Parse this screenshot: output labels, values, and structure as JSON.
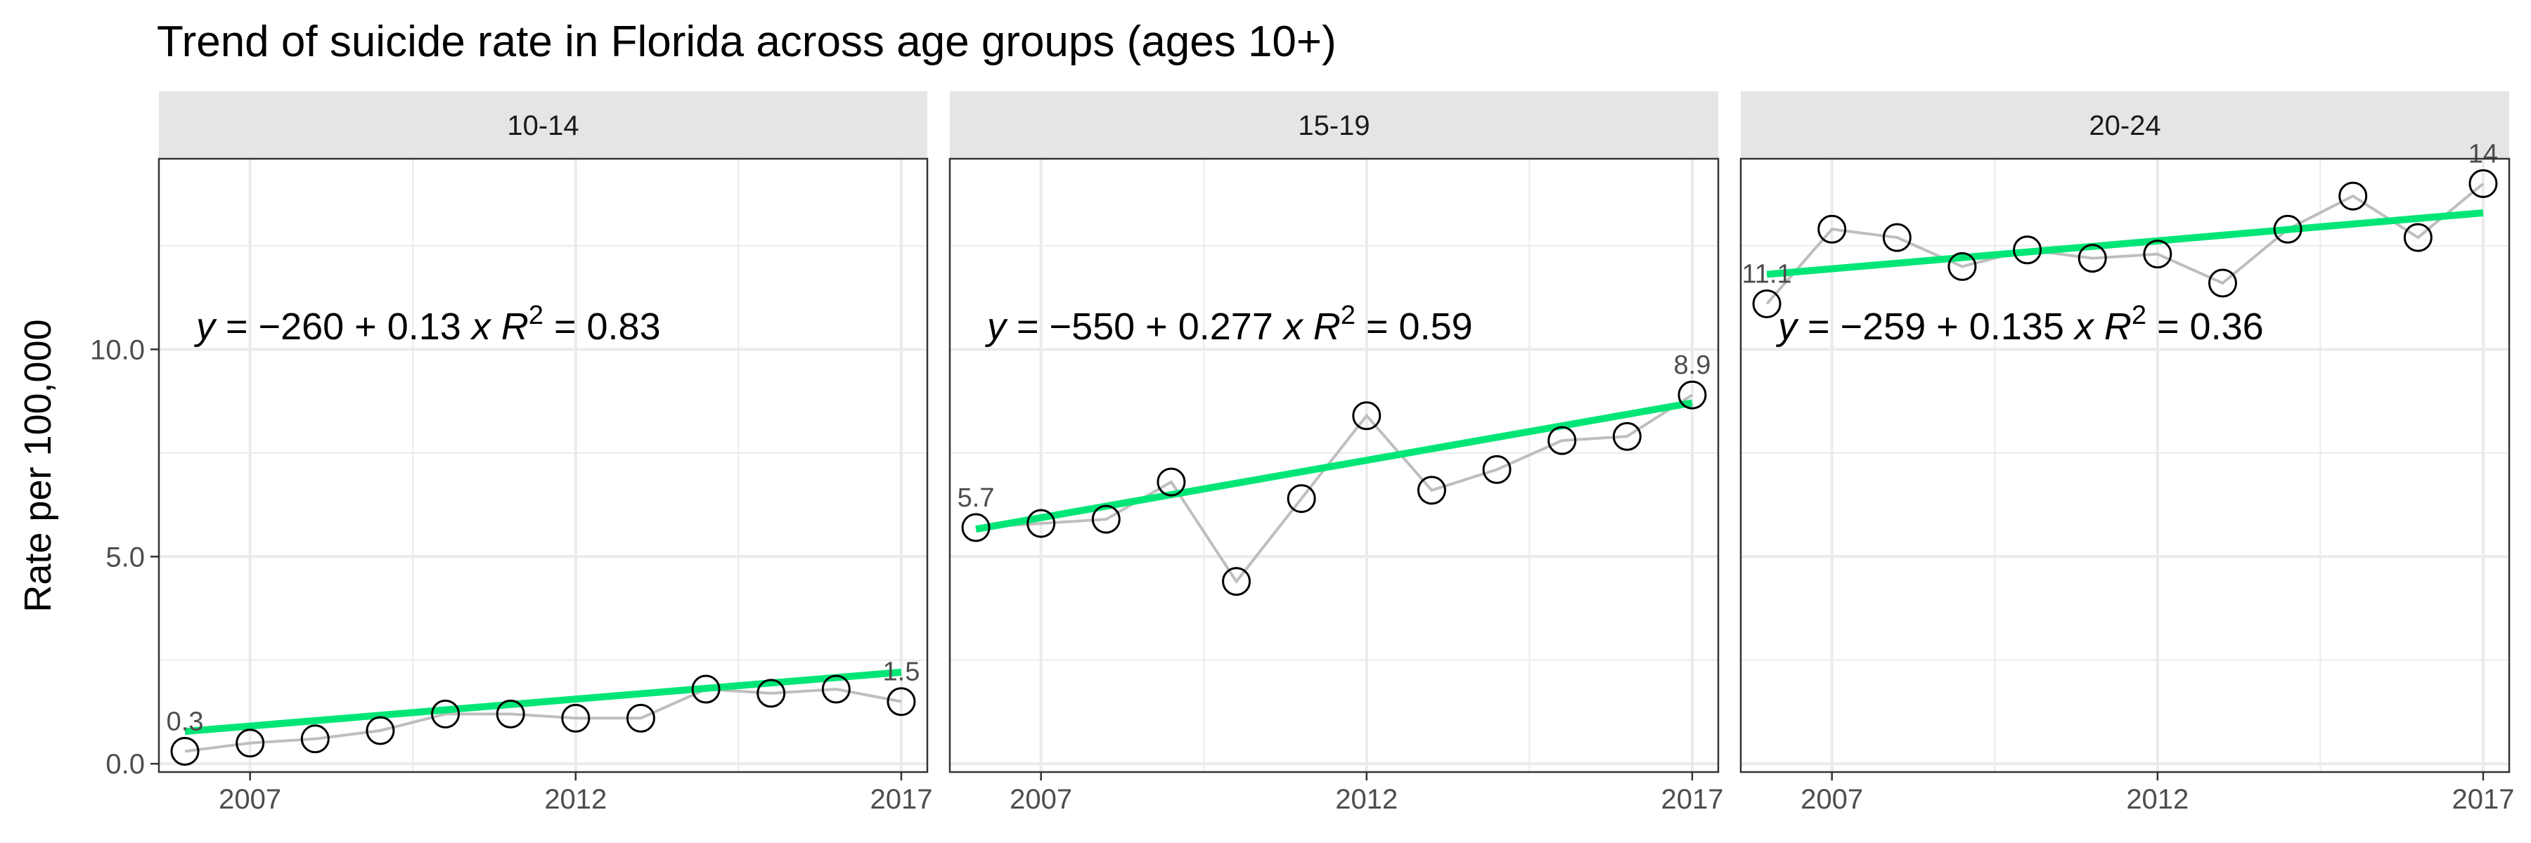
{
  "chart_data": {
    "type": "line",
    "title": "Trend of suicide rate in Florida across age groups (ages 10+)",
    "xlabel": "",
    "ylabel": "Rate per 100,000",
    "xlim": [
      2005.6,
      2017.4
    ],
    "ylim": [
      -0.2,
      14.6
    ],
    "x_ticks": [
      2007,
      2012,
      2017
    ],
    "y_ticks": [
      0,
      5,
      10
    ],
    "y_tick_labels": [
      "0.0",
      "5.0",
      "10.0"
    ],
    "grid": true,
    "x": [
      2006,
      2007,
      2008,
      2009,
      2010,
      2011,
      2012,
      2013,
      2014,
      2015,
      2016,
      2017
    ],
    "colors": {
      "line": "#bebebe",
      "fit": "#00e676",
      "strip": "#e5e5e5",
      "grid": "#ebebeb"
    },
    "panels": [
      {
        "strip": "10-14",
        "values": [
          0.3,
          0.5,
          0.6,
          0.8,
          1.2,
          1.2,
          1.1,
          1.1,
          1.8,
          1.7,
          1.8,
          1.5
        ],
        "fit": {
          "intercept": -260,
          "slope": 0.13
        },
        "equation": {
          "intercept": "−260",
          "slope": "0.13",
          "r2": "0.83"
        },
        "first_label": "0.3",
        "last_label": "1.5"
      },
      {
        "strip": "15-19",
        "values": [
          5.7,
          5.8,
          5.9,
          6.8,
          4.4,
          6.4,
          8.4,
          6.6,
          7.1,
          7.8,
          7.9,
          8.9
        ],
        "fit": {
          "intercept": -550,
          "slope": 0.277
        },
        "equation": {
          "intercept": "−550",
          "slope": "0.277",
          "r2": "0.59"
        },
        "first_label": "5.7",
        "last_label": "8.9"
      },
      {
        "strip": "20-24",
        "values": [
          11.1,
          12.9,
          12.7,
          12.0,
          12.4,
          12.2,
          12.3,
          11.6,
          12.9,
          13.7,
          12.7,
          14.0
        ],
        "fit": {
          "intercept": -259,
          "slope": 0.135
        },
        "equation": {
          "intercept": "−259",
          "slope": "0.135",
          "r2": "0.36"
        },
        "first_label": "11.1",
        "last_label": "14"
      }
    ]
  }
}
